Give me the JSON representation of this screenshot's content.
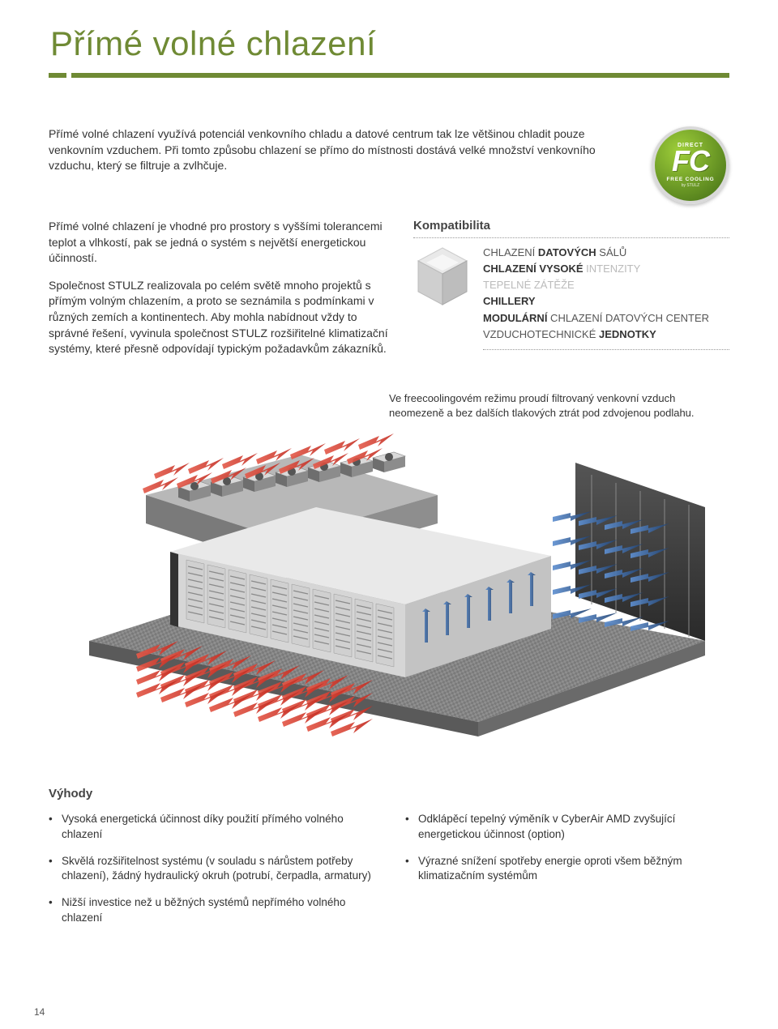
{
  "colors": {
    "accent_green": "#6f8a34",
    "text": "#333333",
    "muted": "#bbbbbb",
    "dotted": "#999999",
    "floor_dark": "#6d6d6d",
    "floor_light": "#9a9a9a",
    "wall": "#3a3a3a",
    "arrow_red": "#d33a2f",
    "arrow_blue": "#2b5fa3",
    "rack_top": "#e8e8e8",
    "rack_side": "#8a8a8a"
  },
  "title": "Přímé volné chlazení",
  "intro": "Přímé volné chlazení využívá potenciál venkovního chladu a datové centrum tak lze většinou chladit pouze venkovním vzduchem. Při tomto způsobu chlazení se přímo do místnosti dostává velké množství venkovního vzduchu, který se filtruje a zvlhčuje.",
  "badge": {
    "top": "DIRECT",
    "mid": "FC",
    "bot": "FREE COOLING",
    "by": "by STULZ"
  },
  "para1": "Přímé volné chlazení je vhodné pro prostory s vyššími tolerancemi teplot a vlhkostí, pak se jedná o systém s největší energetickou účinností.",
  "para2": "Společnost STULZ realizovala po celém světě mnoho projektů s přímým volným chlazením, a proto se seznámila s podmínkami v různých zemích a kontinentech. Aby mohla nabídnout vždy to správné řešení, vyvinula společnost STULZ rozšiřitelné klimatizační systémy, které přesně odpovídají typickým požadavkům zákazníků.",
  "compat": {
    "heading": "Kompatibilita",
    "items": [
      {
        "html": "CHLAZENÍ <b>DATOVÝCH</b> SÁLŮ",
        "enabled": true
      },
      {
        "html": "<b>CHLAZENÍ VYSOKÉ</b> INTENZITY",
        "enabled": false
      },
      {
        "html": "TEPELNÉ ZÁTĚŽE",
        "enabled": false
      },
      {
        "html": "<b>CHILLERY</b>",
        "enabled": false
      },
      {
        "html": "<b>MODULÁRNÍ</b> CHLAZENÍ DATOVÝCH CENTER",
        "enabled": true
      },
      {
        "html": "VZDUCHOTECHNICKÉ <b>JEDNOTKY</b>",
        "enabled": true
      }
    ]
  },
  "diagram_caption": "Ve freecoolingovém režimu proudí filtrovaný venkovní vzduch neomezeně a bez dalších tlakových ztrát pod zdvojenou podlahu.",
  "advantages": {
    "heading": "Výhody",
    "left": [
      "Vysoká energetická účinnost díky použití přímého volného chlazení",
      "Skvělá rozšiřitelnost systému (v souladu s nárůstem potřeby chlazení), žádný hydraulický okruh (potrubí, čerpadla, armatury)",
      "Nižší investice než u běžných systémů nepřímého volného chlazení"
    ],
    "right": [
      "Odklápěcí tepelný výměník v CyberAir AMD zvyšující energetickou účinnost (option)",
      "Výrazné snížení spotřeby energie oproti všem běžným klimatizačním systémům"
    ]
  },
  "page_number": "14"
}
